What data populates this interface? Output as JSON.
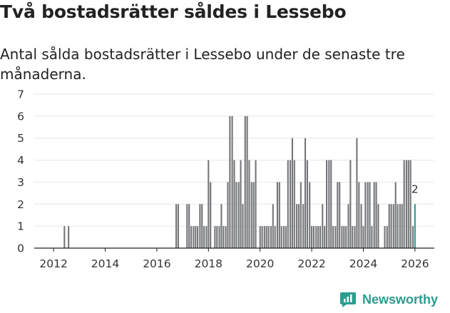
{
  "title": "Två bostadsrätter såldes i Lessebo",
  "subtitle": "Antal sålda bostadsrätter i Lessebo under de senaste tre månaderna.",
  "brand": {
    "name": "Newsworthy",
    "icon": "newsworthy-logo-icon"
  },
  "colors": {
    "bar": "#75767a",
    "highlight": "#2a9d8f",
    "axis": "#222222",
    "grid": "#e6e6e6"
  },
  "chart_data": {
    "type": "bar",
    "title": "Två bostadsrätter såldes i Lessebo",
    "subtitle": "Antal sålda bostadsrätter i Lessebo under de senaste tre månaderna.",
    "xlabel": "",
    "ylabel": "",
    "ylim": [
      0,
      7
    ],
    "yticks": [
      0,
      1,
      2,
      3,
      4,
      5,
      6,
      7
    ],
    "xlim": [
      2011.25,
      2026.75
    ],
    "xticks": [
      2012,
      2014,
      2016,
      2018,
      2020,
      2022,
      2024,
      2026
    ],
    "grid": true,
    "bar_period_years": 0.0833,
    "series": [
      {
        "name": "Antal sålda bostadsrätter",
        "points": [
          [
            2012.42,
            1
          ],
          [
            2012.58,
            1
          ],
          [
            2016.75,
            2
          ],
          [
            2016.83,
            2
          ],
          [
            2017.17,
            2
          ],
          [
            2017.25,
            2
          ],
          [
            2017.33,
            1
          ],
          [
            2017.42,
            1
          ],
          [
            2017.5,
            1
          ],
          [
            2017.58,
            1
          ],
          [
            2017.67,
            2
          ],
          [
            2017.75,
            2
          ],
          [
            2017.83,
            1
          ],
          [
            2017.92,
            1
          ],
          [
            2018.0,
            4
          ],
          [
            2018.08,
            3
          ],
          [
            2018.25,
            1
          ],
          [
            2018.33,
            1
          ],
          [
            2018.42,
            1
          ],
          [
            2018.5,
            2
          ],
          [
            2018.58,
            1
          ],
          [
            2018.67,
            1
          ],
          [
            2018.75,
            3
          ],
          [
            2018.83,
            6
          ],
          [
            2018.92,
            6
          ],
          [
            2019.0,
            4
          ],
          [
            2019.08,
            3
          ],
          [
            2019.17,
            3
          ],
          [
            2019.25,
            4
          ],
          [
            2019.33,
            2
          ],
          [
            2019.42,
            6
          ],
          [
            2019.5,
            6
          ],
          [
            2019.58,
            4
          ],
          [
            2019.67,
            3
          ],
          [
            2019.75,
            3
          ],
          [
            2019.83,
            4
          ],
          [
            2020.0,
            1
          ],
          [
            2020.08,
            1
          ],
          [
            2020.17,
            1
          ],
          [
            2020.25,
            1
          ],
          [
            2020.33,
            1
          ],
          [
            2020.42,
            1
          ],
          [
            2020.5,
            2
          ],
          [
            2020.58,
            1
          ],
          [
            2020.67,
            3
          ],
          [
            2020.75,
            3
          ],
          [
            2020.83,
            1
          ],
          [
            2020.92,
            1
          ],
          [
            2021.0,
            1
          ],
          [
            2021.08,
            4
          ],
          [
            2021.17,
            4
          ],
          [
            2021.25,
            5
          ],
          [
            2021.33,
            4
          ],
          [
            2021.42,
            2
          ],
          [
            2021.5,
            2
          ],
          [
            2021.58,
            3
          ],
          [
            2021.67,
            2
          ],
          [
            2021.75,
            5
          ],
          [
            2021.83,
            4
          ],
          [
            2021.92,
            3
          ],
          [
            2022.0,
            1
          ],
          [
            2022.08,
            1
          ],
          [
            2022.17,
            1
          ],
          [
            2022.25,
            1
          ],
          [
            2022.33,
            1
          ],
          [
            2022.42,
            2
          ],
          [
            2022.5,
            1
          ],
          [
            2022.58,
            4
          ],
          [
            2022.67,
            4
          ],
          [
            2022.75,
            4
          ],
          [
            2022.83,
            1
          ],
          [
            2022.92,
            1
          ],
          [
            2023.0,
            3
          ],
          [
            2023.08,
            3
          ],
          [
            2023.17,
            1
          ],
          [
            2023.25,
            1
          ],
          [
            2023.33,
            1
          ],
          [
            2023.42,
            2
          ],
          [
            2023.5,
            4
          ],
          [
            2023.58,
            1
          ],
          [
            2023.67,
            1
          ],
          [
            2023.75,
            5
          ],
          [
            2023.83,
            3
          ],
          [
            2023.92,
            2
          ],
          [
            2024.0,
            1
          ],
          [
            2024.08,
            3
          ],
          [
            2024.17,
            3
          ],
          [
            2024.25,
            3
          ],
          [
            2024.33,
            1
          ],
          [
            2024.42,
            3
          ],
          [
            2024.5,
            3
          ],
          [
            2024.58,
            2
          ],
          [
            2024.83,
            1
          ],
          [
            2024.92,
            1
          ],
          [
            2025.0,
            2
          ],
          [
            2025.08,
            2
          ],
          [
            2025.17,
            2
          ],
          [
            2025.25,
            3
          ],
          [
            2025.33,
            2
          ],
          [
            2025.42,
            2
          ],
          [
            2025.5,
            2
          ],
          [
            2025.58,
            4
          ],
          [
            2025.67,
            4
          ],
          [
            2025.75,
            4
          ],
          [
            2025.83,
            4
          ],
          [
            2025.92,
            1
          ]
        ]
      }
    ],
    "highlight": {
      "x": 2026.0,
      "value": 2,
      "label": "2"
    }
  }
}
